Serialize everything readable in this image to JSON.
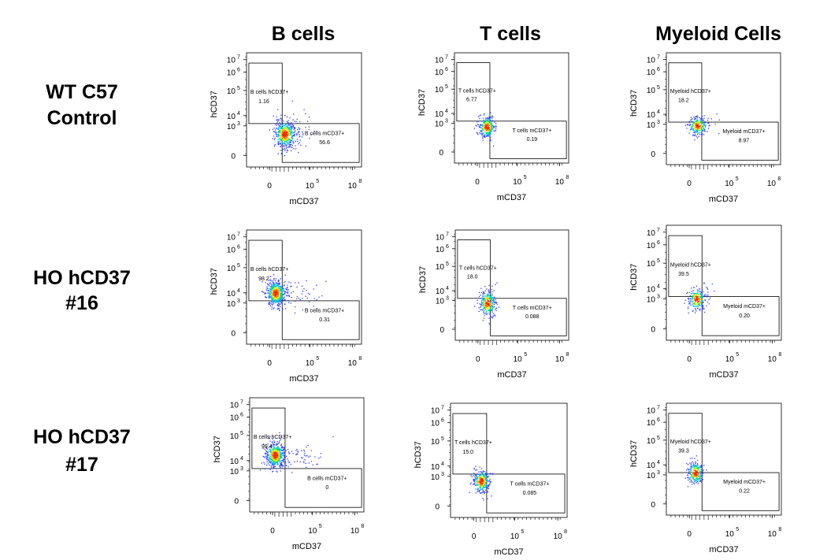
{
  "chart_data": {
    "type": "scatter",
    "subtype": "flow-cytometry-quadrant-dotplots",
    "columns": [
      "B cells",
      "T cells",
      "Myeloid Cells"
    ],
    "rows": [
      {
        "label_line1": "WT C57",
        "label_line2": "Control"
      },
      {
        "label_line1": "HO hCD37",
        "label_line2": "#16"
      },
      {
        "label_line1": "HO hCD37",
        "label_line2": "#17"
      }
    ],
    "xlabel": "mCD37",
    "ylabel": "hCD37",
    "x_ticks": [
      {
        "base": "0",
        "exp": ""
      },
      {
        "base": "10",
        "exp": "5"
      },
      {
        "base": "10",
        "exp": "8"
      }
    ],
    "y_ticks": [
      {
        "base": "0",
        "exp": ""
      },
      {
        "base": "10",
        "exp": "3"
      },
      {
        "base": "10",
        "exp": "4"
      },
      {
        "base": "10",
        "exp": "5"
      },
      {
        "base": "10",
        "exp": "6"
      },
      {
        "base": "10",
        "exp": "7"
      }
    ],
    "panels": [
      {
        "row": 0,
        "col": 0,
        "gates": {
          "upper_name": "B cells hCD37+",
          "upper_value": "1.16",
          "lower_name": "B cells mCD37+",
          "lower_value": "56.6"
        }
      },
      {
        "row": 0,
        "col": 1,
        "gates": {
          "upper_name": "T cells hCD37+",
          "upper_value": "6.77",
          "lower_name": "T cells mCD37+",
          "lower_value": "0.19"
        }
      },
      {
        "row": 0,
        "col": 2,
        "gates": {
          "upper_name": "Myeloid hCD37+",
          "upper_value": "18.2",
          "lower_name": "Myeloid mCD37+",
          "lower_value": "8.97"
        }
      },
      {
        "row": 1,
        "col": 0,
        "gates": {
          "upper_name": "B cells hCD37+",
          "upper_value": "98.2",
          "lower_name": "B cells mCD37+",
          "lower_value": "0.31"
        }
      },
      {
        "row": 1,
        "col": 1,
        "gates": {
          "upper_name": "T cells hCD37+",
          "upper_value": "18.0",
          "lower_name": "T cells mCD37+",
          "lower_value": "0.088"
        }
      },
      {
        "row": 1,
        "col": 2,
        "gates": {
          "upper_name": "Myeloid hCD37+",
          "upper_value": "39.5",
          "lower_name": "Myeloid mCD37+",
          "lower_value": "0.20"
        }
      },
      {
        "row": 2,
        "col": 0,
        "gates": {
          "upper_name": "B cells hCD37+",
          "upper_value": "99.4",
          "lower_name": "B cells mCD37+",
          "lower_value": "0"
        }
      },
      {
        "row": 2,
        "col": 1,
        "gates": {
          "upper_name": "T cells hCD37+",
          "upper_value": "15.0",
          "lower_name": "T cells mCD37+",
          "lower_value": "0.085"
        }
      },
      {
        "row": 2,
        "col": 2,
        "gates": {
          "upper_name": "Myeloid hCD37+",
          "upper_value": "39.3",
          "lower_name": "Myeloid mCD37+",
          "lower_value": "0.22"
        }
      }
    ],
    "density_colors": [
      "#3040ff",
      "#00b4ff",
      "#00e070",
      "#f0f000",
      "#ff8000",
      "#ff2000"
    ]
  }
}
